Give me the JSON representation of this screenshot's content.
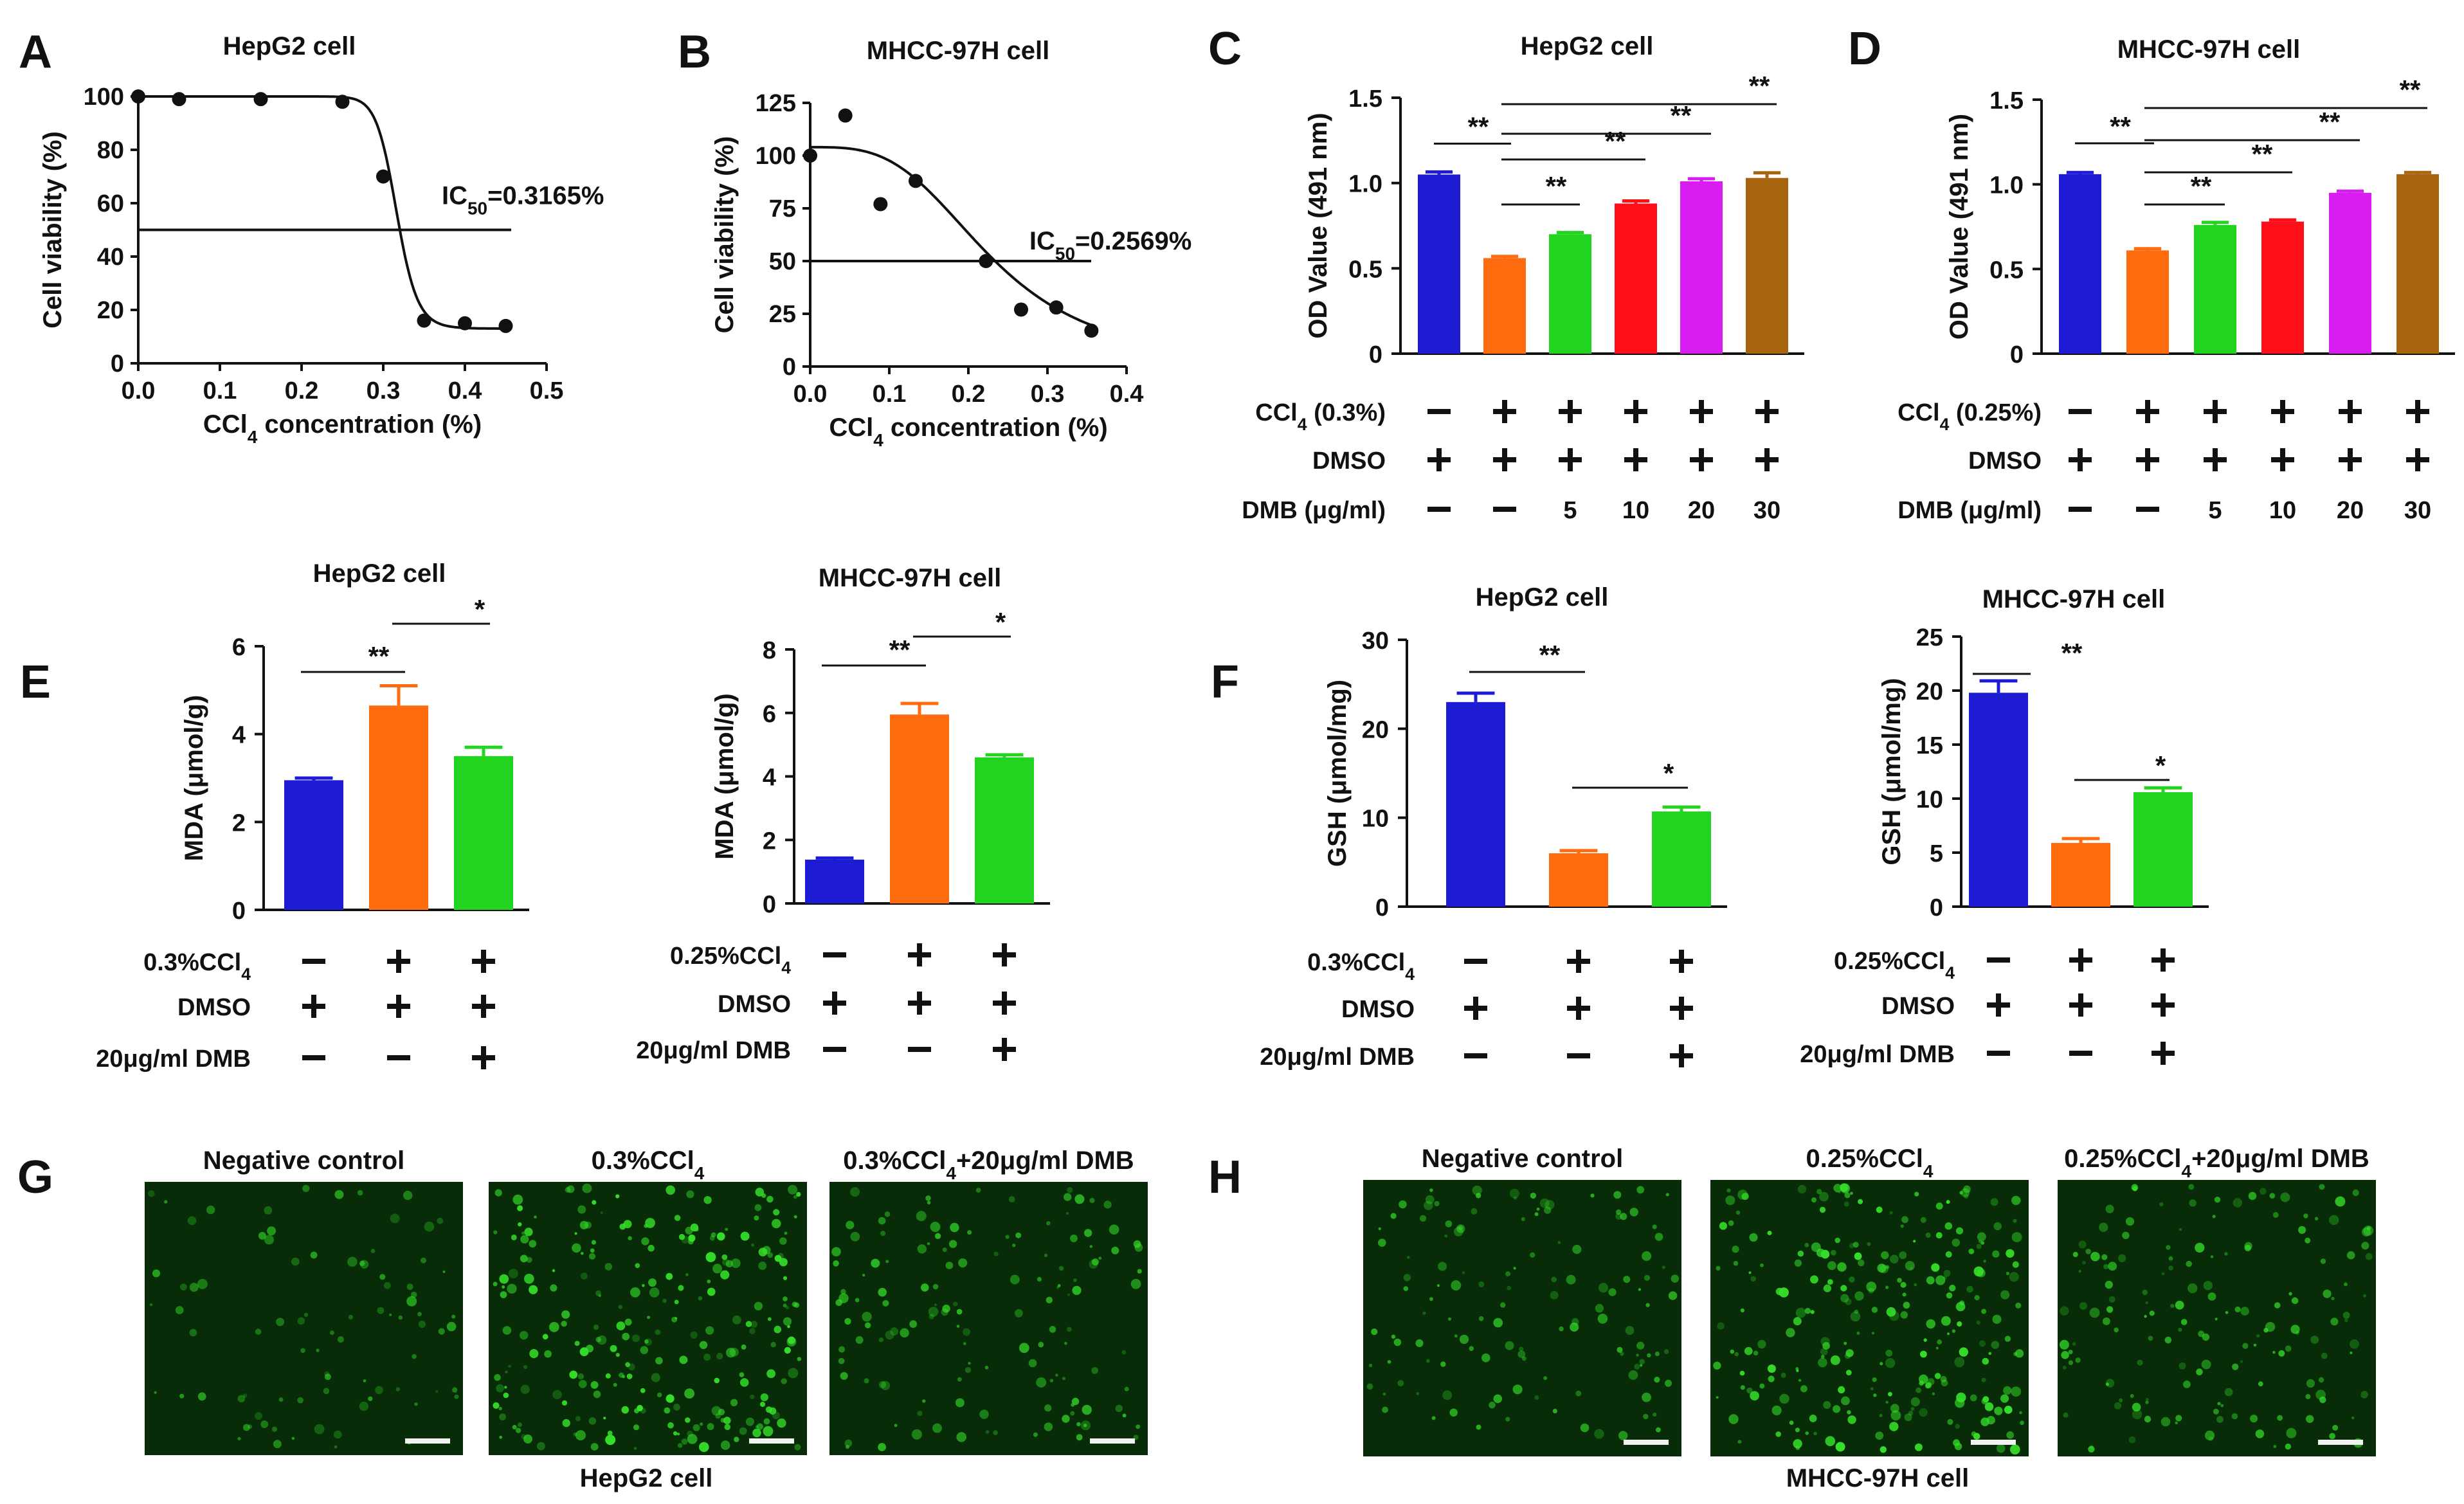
{
  "colors": {
    "blue": "#1d1bd4",
    "orange": "#ff6b0f",
    "green": "#22d41f",
    "red": "#ff0d18",
    "magenta": "#d71df0",
    "brown": "#a8650f",
    "fluorescence": "#35e02a",
    "background_micrograph": "#072c07"
  },
  "panel_letters": [
    "A",
    "B",
    "C",
    "D",
    "E",
    "F",
    "G",
    "H"
  ],
  "chart_data": [
    {
      "id": "A",
      "type": "scatter",
      "title": "HepG2 cell",
      "xlabel": "CCl4 concentration (%)",
      "ylabel": "Cell viability (%)",
      "xlim": [
        0,
        0.5
      ],
      "ylim": [
        0,
        100
      ],
      "xticks": [
        "0.0",
        "0.1",
        "0.2",
        "0.3",
        "0.4",
        "0.5"
      ],
      "yticks": [
        "0",
        "20",
        "40",
        "60",
        "80",
        "100"
      ],
      "points": [
        [
          0.0,
          100
        ],
        [
          0.05,
          99
        ],
        [
          0.15,
          99
        ],
        [
          0.25,
          98
        ],
        [
          0.3,
          70
        ],
        [
          0.35,
          16
        ],
        [
          0.4,
          15
        ],
        [
          0.45,
          14
        ]
      ],
      "fit": {
        "ic50": 0.3165,
        "hill": 25,
        "top": 100,
        "bottom": 13
      },
      "ic50_line": 50,
      "ic50_label": "IC50=0.3165%"
    },
    {
      "id": "B",
      "type": "scatter",
      "title": "MHCC-97H cell",
      "xlabel": "CCl4 concentration (%)",
      "ylabel": "Cell viability (%)",
      "xlim": [
        0,
        0.45
      ],
      "ylim": [
        0,
        125
      ],
      "xticks": [
        "0.0",
        "0.1",
        "0.2",
        "0.3",
        "0.4"
      ],
      "yticks": [
        "0",
        "25",
        "50",
        "75",
        "100",
        "125"
      ],
      "points": [
        [
          0.0,
          100
        ],
        [
          0.05,
          119
        ],
        [
          0.1,
          77
        ],
        [
          0.15,
          88
        ],
        [
          0.25,
          50
        ],
        [
          0.3,
          27
        ],
        [
          0.35,
          28
        ],
        [
          0.4,
          17
        ]
      ],
      "fit": {
        "ic50": 0.2569,
        "hill": 3.3,
        "top": 104,
        "bottom": 0
      },
      "ic50_line": 50,
      "ic50_label": "IC50=0.2569%"
    },
    {
      "id": "C",
      "type": "bar",
      "title": "HepG2 cell",
      "ylabel": "OD Value (491 nm)",
      "ylim": [
        0,
        1.5
      ],
      "yticks": [
        "0",
        "0.5",
        "1.0",
        "1.5"
      ],
      "values": [
        1.05,
        0.56,
        0.7,
        0.88,
        1.01,
        1.03
      ],
      "errors": [
        0.015,
        0.01,
        0.01,
        0.015,
        0.015,
        0.03
      ],
      "bar_colors": [
        "blue",
        "orange",
        "green",
        "red",
        "magenta",
        "brown"
      ],
      "conditions": [
        {
          "label": "CCl4 (0.3%)",
          "symbols": [
            "−",
            "+",
            "+",
            "+",
            "+",
            "+"
          ]
        },
        {
          "label": "DMSO",
          "symbols": [
            "+",
            "+",
            "+",
            "+",
            "+",
            "+"
          ]
        },
        {
          "label": "DMB (μg/ml)",
          "symbols": [
            "−",
            "−",
            "5",
            "10",
            "20",
            "30"
          ]
        }
      ],
      "significance": [
        {
          "from": 0,
          "to": 1,
          "label": "**"
        },
        {
          "from": 1,
          "to": 2,
          "label": "**"
        },
        {
          "from": 1,
          "to": 3,
          "label": "**"
        },
        {
          "from": 1,
          "to": 4,
          "label": "**"
        },
        {
          "from": 1,
          "to": 5,
          "label": "**"
        }
      ]
    },
    {
      "id": "D",
      "type": "bar",
      "title": "MHCC-97H cell",
      "ylabel": "OD Value (491 nm)",
      "ylim": [
        0,
        1.5
      ],
      "yticks": [
        "0",
        "0.5",
        "1.0",
        "1.5"
      ],
      "values": [
        1.06,
        0.61,
        0.76,
        0.78,
        0.95,
        1.06
      ],
      "errors": [
        0.01,
        0.01,
        0.015,
        0.01,
        0.01,
        0.01
      ],
      "bar_colors": [
        "blue",
        "orange",
        "green",
        "red",
        "magenta",
        "brown"
      ],
      "conditions": [
        {
          "label": "CCl4 (0.25%)",
          "symbols": [
            "−",
            "+",
            "+",
            "+",
            "+",
            "+"
          ]
        },
        {
          "label": "DMSO",
          "symbols": [
            "+",
            "+",
            "+",
            "+",
            "+",
            "+"
          ]
        },
        {
          "label": "DMB (μg/ml)",
          "symbols": [
            "−",
            "−",
            "5",
            "10",
            "20",
            "30"
          ]
        }
      ],
      "significance": [
        {
          "from": 0,
          "to": 1,
          "label": "**"
        },
        {
          "from": 1,
          "to": 2,
          "label": "**"
        },
        {
          "from": 1,
          "to": 3,
          "label": "**"
        },
        {
          "from": 1,
          "to": 4,
          "label": "**"
        },
        {
          "from": 1,
          "to": 5,
          "label": "**"
        }
      ]
    },
    {
      "id": "E1",
      "type": "bar",
      "title": "HepG2 cell",
      "ylabel": "MDA (μmol/g)",
      "ylim": [
        0,
        6
      ],
      "yticks": [
        "0",
        "2",
        "4",
        "6"
      ],
      "values": [
        2.95,
        4.65,
        3.5
      ],
      "errors": [
        0.05,
        0.45,
        0.2
      ],
      "bar_colors": [
        "blue",
        "orange",
        "green"
      ],
      "conditions": [
        {
          "label": "0.3%CCl4",
          "symbols": [
            "−",
            "+",
            "+"
          ]
        },
        {
          "label": "DMSO",
          "symbols": [
            "+",
            "+",
            "+"
          ]
        },
        {
          "label": "20μg/ml DMB",
          "symbols": [
            "−",
            "−",
            "+"
          ]
        }
      ],
      "significance": [
        {
          "from": 0,
          "to": 1,
          "label": "**"
        },
        {
          "from": 1,
          "to": 2,
          "label": "*"
        }
      ]
    },
    {
      "id": "E2",
      "type": "bar",
      "title": "MHCC-97H cell",
      "ylabel": "MDA (μmol/g)",
      "ylim": [
        0,
        8
      ],
      "yticks": [
        "0",
        "2",
        "4",
        "6",
        "8"
      ],
      "values": [
        1.38,
        5.95,
        4.6
      ],
      "errors": [
        0.05,
        0.35,
        0.08
      ],
      "bar_colors": [
        "blue",
        "orange",
        "green"
      ],
      "conditions": [
        {
          "label": "0.25%CCl4",
          "symbols": [
            "−",
            "+",
            "+"
          ]
        },
        {
          "label": "DMSO",
          "symbols": [
            "+",
            "+",
            "+"
          ]
        },
        {
          "label": "20μg/ml DMB",
          "symbols": [
            "−",
            "−",
            "+"
          ]
        }
      ],
      "significance": [
        {
          "from": 0,
          "to": 1,
          "label": "**"
        },
        {
          "from": 1,
          "to": 2,
          "label": "*"
        }
      ]
    },
    {
      "id": "F1",
      "type": "bar",
      "title": "HepG2 cell",
      "ylabel": "GSH (μmol/mg)",
      "ylim": [
        0,
        30
      ],
      "yticks": [
        "0",
        "10",
        "20",
        "30"
      ],
      "values": [
        23.0,
        6.0,
        10.7
      ],
      "errors": [
        1.0,
        0.3,
        0.5
      ],
      "bar_colors": [
        "blue",
        "orange",
        "green"
      ],
      "conditions": [
        {
          "label": "0.3%CCl4",
          "symbols": [
            "−",
            "+",
            "+"
          ]
        },
        {
          "label": "DMSO",
          "symbols": [
            "+",
            "+",
            "+"
          ]
        },
        {
          "label": "20μg/ml DMB",
          "symbols": [
            "−",
            "−",
            "+"
          ]
        }
      ],
      "significance": [
        {
          "from": 0,
          "to": 1,
          "label": "**"
        },
        {
          "from": 1,
          "to": 2,
          "label": "*"
        }
      ]
    },
    {
      "id": "F2",
      "type": "bar",
      "title": "MHCC-97H cell",
      "ylabel": "GSH (μmol/mg)",
      "ylim": [
        0,
        25
      ],
      "yticks": [
        "0",
        "5",
        "10",
        "15",
        "20",
        "25"
      ],
      "values": [
        19.8,
        5.9,
        10.6
      ],
      "errors": [
        1.1,
        0.4,
        0.4
      ],
      "bar_colors": [
        "blue",
        "orange",
        "green"
      ],
      "conditions": [
        {
          "label": "0.25%CCl4",
          "symbols": [
            "−",
            "+",
            "+"
          ]
        },
        {
          "label": "DMSO",
          "symbols": [
            "+",
            "+",
            "+"
          ]
        },
        {
          "label": "20μg/ml DMB",
          "symbols": [
            "−",
            "−",
            "+"
          ]
        }
      ],
      "significance": [
        {
          "from": 0,
          "to": 1,
          "label": "**"
        },
        {
          "from": 1,
          "to": 2,
          "label": "*"
        }
      ]
    }
  ],
  "micrographs": {
    "G": {
      "labels": [
        "Negative control",
        "0.3%CCl4",
        "0.3%CCl4+20μg/ml DMB"
      ],
      "caption": "HepG2 cell",
      "cell_density": [
        0.2,
        1.0,
        0.45
      ]
    },
    "H": {
      "labels": [
        "Negative control",
        "0.25%CCl4",
        "0.25%CCl4+20μg/ml DMB"
      ],
      "caption": "MHCC-97H cell",
      "cell_density": [
        0.4,
        1.0,
        0.55
      ]
    }
  }
}
